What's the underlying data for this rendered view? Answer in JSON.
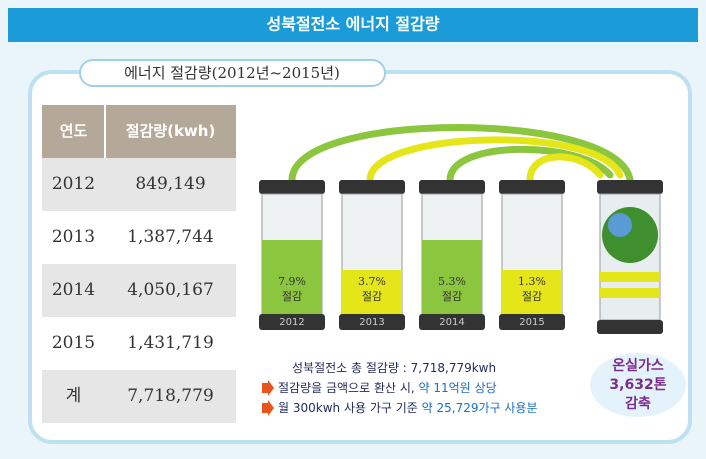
{
  "header": {
    "title": "성북절전소 에너지 절감량"
  },
  "section_title": "에너지 절감량(2012년~2015년)",
  "table": {
    "columns": [
      "연도",
      "절감량(kwh)"
    ],
    "rows": [
      [
        "2012",
        "849,149"
      ],
      [
        "2013",
        "1,387,744"
      ],
      [
        "2014",
        "4,050,167"
      ],
      [
        "2015",
        "1,431,719"
      ],
      [
        "계",
        "7,718,779"
      ]
    ]
  },
  "batteries": [
    {
      "year": "2012",
      "percent": "7.9%",
      "text": "절감"
    },
    {
      "year": "2013",
      "percent": "3.7%",
      "text": "절감"
    },
    {
      "year": "2014",
      "percent": "5.3%",
      "text": "절감"
    },
    {
      "year": "2015",
      "percent": "1.3%",
      "text": "절감"
    }
  ],
  "summary": [
    {
      "text": "성북절전소 총 절감량 : 7,718,779kwh"
    },
    {
      "text": "절감량을 금액으로 환산 시, ",
      "highlight": "약 11억원 상당"
    },
    {
      "text": "월 300kwh 사용 가구 기준 ",
      "highlight": "약 25,729가구 사용분"
    }
  ],
  "greenhouse": [
    "온실가스",
    "3,632톤",
    "감축"
  ]
}
